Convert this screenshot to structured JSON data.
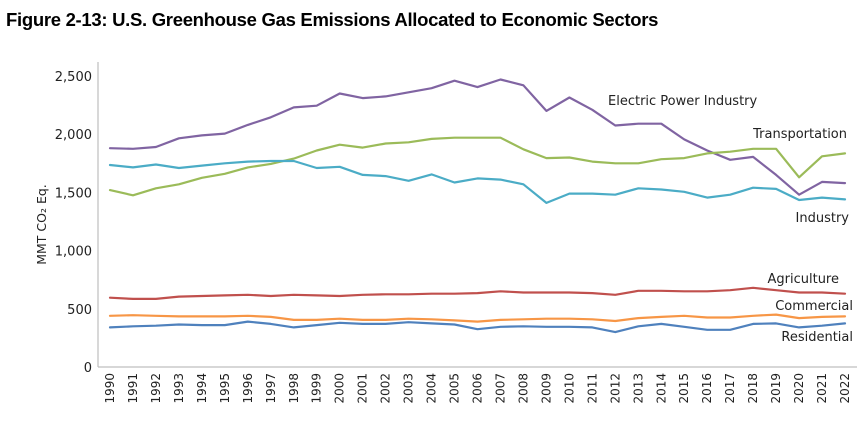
{
  "figure": {
    "title": "Figure 2-13:  U.S. Greenhouse Gas Emissions Allocated to Economic Sectors"
  },
  "chart_data": {
    "type": "line",
    "title": "Figure 2-13:  U.S. Greenhouse Gas Emissions Allocated to Economic Sectors",
    "xlabel": "",
    "ylabel": "MMT CO₂ Eq.",
    "ylim": [
      0,
      2500
    ],
    "yticks": [
      0,
      500,
      1000,
      1500,
      2000,
      2500
    ],
    "ytick_labels": [
      "0",
      "500",
      "1,000",
      "1,500",
      "2,000",
      "2,500"
    ],
    "grid": false,
    "legend": "inline labels at line ends (right)",
    "x": [
      "1990",
      "1991",
      "1992",
      "1993",
      "1994",
      "1995",
      "1996",
      "1997",
      "1998",
      "1999",
      "2000",
      "2001",
      "2002",
      "2003",
      "2004",
      "2005",
      "2006",
      "2007",
      "2008",
      "2009",
      "2010",
      "2011",
      "2012",
      "2013",
      "2014",
      "2015",
      "2016",
      "2017",
      "2018",
      "2019",
      "2020",
      "2021",
      "2022"
    ],
    "series": [
      {
        "name": "Electric Power Industry",
        "color": "#8064a2",
        "values": [
          1880,
          1875,
          1890,
          1965,
          1990,
          2005,
          2080,
          2145,
          2230,
          2245,
          2350,
          2310,
          2325,
          2360,
          2395,
          2460,
          2405,
          2470,
          2420,
          2200,
          2315,
          2210,
          2075,
          2090,
          2090,
          1955,
          1860,
          1780,
          1805,
          1650,
          1480,
          1590,
          1580
        ]
      },
      {
        "name": "Transportation",
        "color": "#9bbb59",
        "values": [
          1520,
          1475,
          1535,
          1570,
          1625,
          1660,
          1715,
          1745,
          1790,
          1860,
          1910,
          1885,
          1920,
          1930,
          1960,
          1970,
          1970,
          1970,
          1870,
          1795,
          1800,
          1765,
          1750,
          1750,
          1785,
          1795,
          1835,
          1850,
          1875,
          1875,
          1630,
          1810,
          1835
        ]
      },
      {
        "name": "Industry",
        "color": "#4bacc6",
        "values": [
          1735,
          1715,
          1740,
          1710,
          1730,
          1750,
          1765,
          1770,
          1770,
          1710,
          1720,
          1650,
          1640,
          1600,
          1655,
          1585,
          1620,
          1610,
          1570,
          1410,
          1490,
          1490,
          1480,
          1535,
          1525,
          1505,
          1455,
          1480,
          1540,
          1530,
          1435,
          1455,
          1440
        ]
      },
      {
        "name": "Agriculture",
        "color": "#c0504d",
        "values": [
          595,
          585,
          585,
          605,
          610,
          615,
          620,
          610,
          620,
          615,
          610,
          620,
          625,
          625,
          630,
          630,
          635,
          650,
          640,
          640,
          640,
          635,
          620,
          655,
          655,
          650,
          650,
          660,
          680,
          660,
          640,
          640,
          630
        ]
      },
      {
        "name": "Commercial",
        "color": "#f79646",
        "values": [
          440,
          445,
          440,
          435,
          435,
          435,
          440,
          430,
          405,
          405,
          415,
          405,
          405,
          415,
          410,
          400,
          390,
          405,
          410,
          415,
          415,
          410,
          395,
          420,
          430,
          440,
          425,
          425,
          440,
          450,
          420,
          430,
          435
        ]
      },
      {
        "name": "Residential",
        "color": "#4f81bd",
        "values": [
          340,
          350,
          355,
          365,
          360,
          360,
          390,
          370,
          340,
          360,
          380,
          370,
          370,
          385,
          375,
          365,
          325,
          345,
          350,
          345,
          345,
          340,
          300,
          350,
          370,
          345,
          320,
          320,
          370,
          375,
          340,
          355,
          375
        ]
      }
    ]
  }
}
